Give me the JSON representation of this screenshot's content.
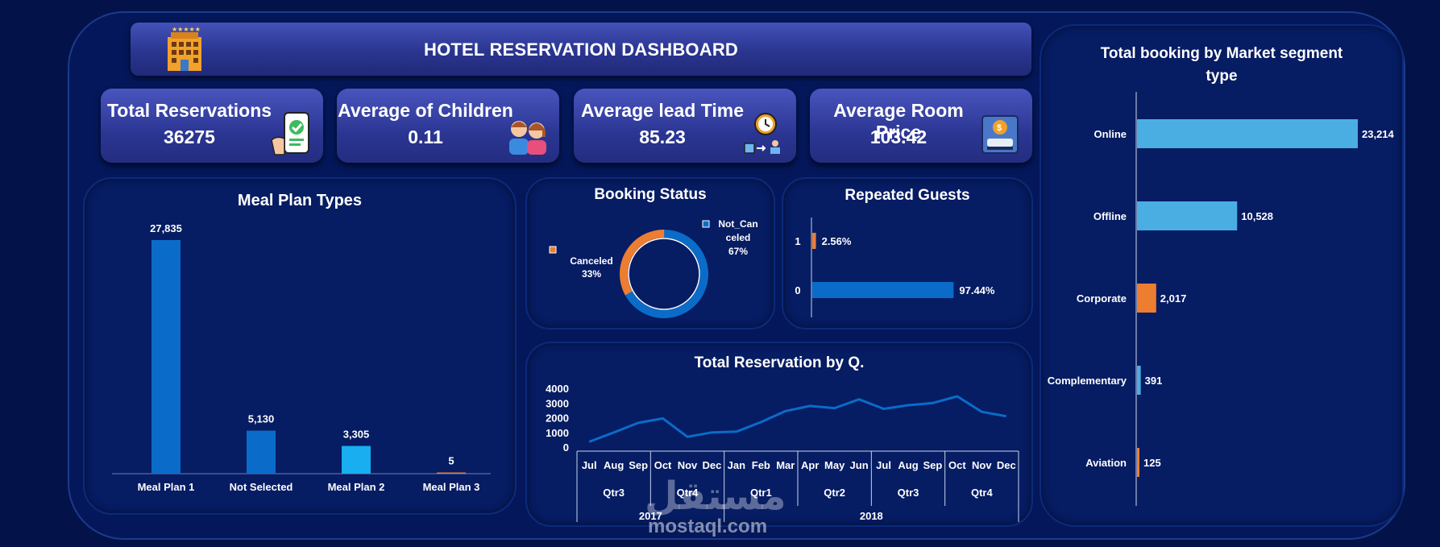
{
  "dashboard": {
    "title": "HOTEL RESERVATION DASHBOARD"
  },
  "kpis": [
    {
      "label": "Total Reservations",
      "value": "36275",
      "icon": "phone-checkmark-icon"
    },
    {
      "label": "Average of Children",
      "value": "0.11",
      "icon": "children-icon"
    },
    {
      "label": "Average lead Time",
      "value": "85.23",
      "icon": "clock-icon"
    },
    {
      "label": "Average Room Price",
      "value": "103.42",
      "icon": "hotel-price-icon"
    }
  ],
  "meal_plan": {
    "title": "Meal Plan Types",
    "chart_data": {
      "type": "bar",
      "categories": [
        "Meal Plan 1",
        "Not Selected",
        "Meal Plan 2",
        "Meal Plan 3"
      ],
      "values": [
        27835,
        5130,
        3305,
        5
      ],
      "labels": [
        "27,835",
        "5,130",
        "3,305",
        "5"
      ],
      "colors": [
        "#0a6cc8",
        "#0a6cc8",
        "#19aef0",
        "#ed7d31"
      ]
    }
  },
  "booking_status": {
    "title": "Booking Status",
    "chart_data": {
      "type": "pie",
      "categories": [
        "Canceled",
        "Not_Canceled"
      ],
      "values": [
        33,
        67
      ],
      "colors": [
        "#ed7d31",
        "#0a6cc8"
      ],
      "label_canceled_1": "Canceled",
      "label_canceled_2": "33%",
      "label_not_1": "Not_Can",
      "label_not_2": "celed",
      "label_not_3": "67%"
    }
  },
  "repeated_guests": {
    "title": "Repeated Guests",
    "chart_data": {
      "type": "bar",
      "categories": [
        "1",
        "0"
      ],
      "values": [
        2.56,
        97.44
      ],
      "labels": [
        "2.56%",
        "97.44%"
      ],
      "colors": [
        "#ed7d31",
        "#0a6cc8"
      ]
    }
  },
  "reservations_by_q": {
    "title": "Total Reservation by Q.",
    "chart_data": {
      "type": "line",
      "y_ticks": [
        "4000",
        "3000",
        "2000",
        "1000",
        "0"
      ],
      "ylim": [
        0,
        4000
      ],
      "months": [
        "Jul",
        "Aug",
        "Sep",
        "Oct",
        "Nov",
        "Dec",
        "Jan",
        "Feb",
        "Mar",
        "Apr",
        "May",
        "Jun",
        "Jul",
        "Aug",
        "Sep",
        "Oct",
        "Nov",
        "Dec"
      ],
      "quarters": [
        "Qtr3",
        "Qtr4",
        "Qtr1",
        "Qtr2",
        "Qtr3",
        "Qtr4"
      ],
      "years": [
        "2017",
        "2018"
      ],
      "values": [
        360,
        1000,
        1650,
        1950,
        700,
        1000,
        1050,
        1700,
        2450,
        2800,
        2650,
        3250,
        2600,
        2850,
        3000,
        3450,
        2400,
        2100
      ],
      "color": "#0a6cc8"
    }
  },
  "market_segment": {
    "title_line1": "Total booking by Market segment",
    "title_line2": "type",
    "chart_data": {
      "type": "bar",
      "categories": [
        "Online",
        "Offline",
        "Corporate",
        "Complementary",
        "Aviation"
      ],
      "values": [
        23214,
        10528,
        2017,
        391,
        125
      ],
      "labels": [
        "23,214",
        "10,528",
        "2,017",
        "391",
        "125"
      ],
      "colors": [
        "#4aaee2",
        "#4aaee2",
        "#ed7d31",
        "#4aaee2",
        "#ed7d31"
      ]
    }
  },
  "watermark": {
    "arabic": "مستقل",
    "latin": "mostaql.com"
  }
}
